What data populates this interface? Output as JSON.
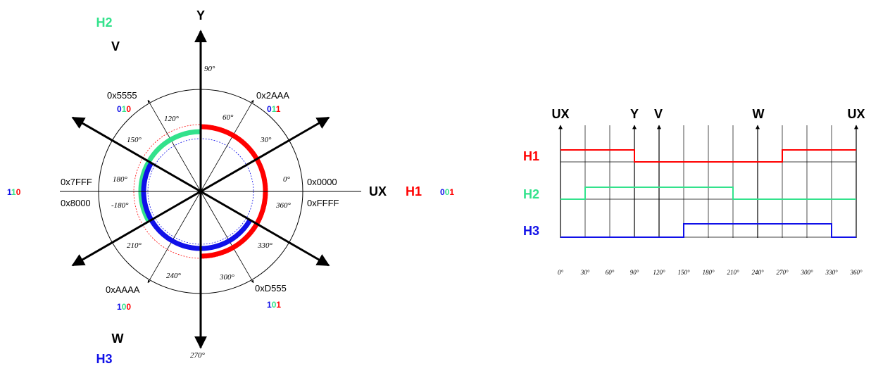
{
  "colors": {
    "red": "#ff0000",
    "green": "#33e28c",
    "blue": "#1010e8",
    "dark_red": "#8b1a1a",
    "black": "#000000"
  },
  "left_diagram": {
    "axis_labels": {
      "Y": "Y",
      "UX": "UX",
      "V": "V",
      "W": "W"
    },
    "hall_labels": {
      "H1": "H1",
      "H2": "H2",
      "H3": "H3"
    },
    "hex_labels": {
      "h0000": "0x0000",
      "hFFFF": "0xFFFF",
      "h2AAA": "0x2AAA",
      "h5555": "0x5555",
      "h7FFF": "0x7FFF",
      "h8000": "0x8000",
      "hAAAA": "0xAAAA",
      "hD555": "0xD555"
    },
    "codes": {
      "c001": [
        "0",
        "0",
        "1"
      ],
      "c011": [
        "0",
        "1",
        "1"
      ],
      "c010": [
        "0",
        "1",
        "0"
      ],
      "c110": [
        "1",
        "1",
        "0"
      ],
      "c100": [
        "1",
        "0",
        "0"
      ],
      "c101": [
        "1",
        "0",
        "1"
      ]
    },
    "angle_labels": {
      "a0": "0°",
      "a30": "30°",
      "a60": "60°",
      "a90": "90°",
      "a120": "120°",
      "a150": "150°",
      "a180": "180°",
      "a_180": "-180°",
      "a210": "210°",
      "a240": "240°",
      "a270": "270°",
      "a300": "300°",
      "a330": "330°",
      "a360": "360°"
    }
  },
  "right_diagram": {
    "top_labels": {
      "UX_left": "UX",
      "Y": "Y",
      "V": "V",
      "W": "W",
      "UX_right": "UX"
    },
    "signal_labels": [
      "H1",
      "H2",
      "H3"
    ],
    "tick_labels": [
      "0°",
      "30°",
      "60°",
      "90°",
      "120°",
      "150°",
      "180°",
      "210°",
      "240°",
      "270°",
      "300°",
      "330°",
      "360°"
    ],
    "signals": {
      "H1": {
        "high_intervals": [
          [
            0,
            90
          ],
          [
            270,
            360
          ]
        ]
      },
      "H2": {
        "high_intervals": [
          [
            30,
            210
          ]
        ]
      },
      "H3": {
        "high_intervals": [
          [
            150,
            330
          ]
        ]
      }
    }
  }
}
